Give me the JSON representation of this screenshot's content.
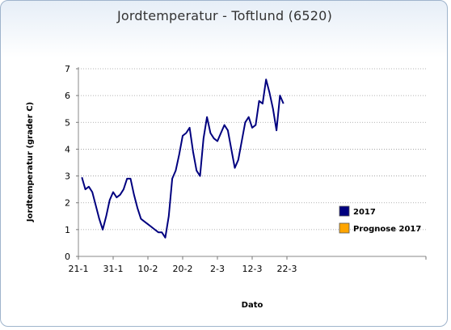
{
  "chart_data": {
    "type": "line",
    "title": "Jordtemperatur - Toftlund (6520)",
    "xlabel": "Dato",
    "ylabel": "Jordtemperatur (grader C)",
    "x_tick_labels": [
      "21-1",
      "31-1",
      "10-2",
      "20-2",
      "2-3",
      "12-3",
      "22-3"
    ],
    "ylim": [
      0,
      7
    ],
    "y_ticks": [
      0,
      1,
      2,
      3,
      4,
      5,
      6,
      7
    ],
    "grid": "horizontal dotted",
    "legend_position": "right",
    "series": [
      {
        "name": "2017",
        "color": "#00007f",
        "x_start": "2017-01-22",
        "values": [
          2.95,
          2.5,
          2.6,
          2.4,
          1.9,
          1.4,
          1.0,
          1.5,
          2.1,
          2.4,
          2.2,
          2.3,
          2.5,
          2.9,
          2.9,
          2.3,
          1.8,
          1.4,
          1.3,
          1.2,
          1.1,
          1.0,
          0.9,
          0.9,
          0.7,
          1.5,
          2.9,
          3.2,
          3.8,
          4.5,
          4.6,
          4.8,
          3.9,
          3.2,
          3.0,
          4.4,
          5.2,
          4.6,
          4.4,
          4.3,
          4.6,
          4.9,
          4.7,
          4.0,
          3.3,
          3.6,
          4.3,
          5.0,
          5.2,
          4.8,
          4.9,
          5.8,
          5.7,
          6.6,
          6.1,
          5.5,
          4.7,
          6.0,
          5.7
        ]
      },
      {
        "name": "Prognose 2017",
        "color": "#ffa500",
        "values": []
      }
    ]
  }
}
